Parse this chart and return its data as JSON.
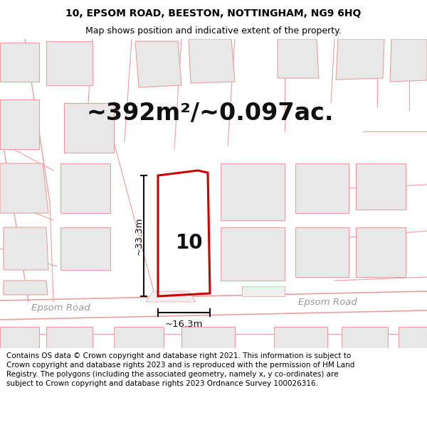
{
  "title_line1": "10, EPSOM ROAD, BEESTON, NOTTINGHAM, NG9 6HQ",
  "title_line2": "Map shows position and indicative extent of the property.",
  "area_text": "~392m²/~0.097ac.",
  "label_number": "10",
  "dim_width": "~16.3m",
  "dim_height": "~33.3m",
  "road_label_left": "Epsom Road",
  "road_label_right": "Epsom Road",
  "footer_text": "Contains OS data © Crown copyright and database right 2021. This information is subject to Crown copyright and database rights 2023 and is reproduced with the permission of HM Land Registry. The polygons (including the associated geometry, namely x, y co-ordinates) are subject to Crown copyright and database rights 2023 Ordnance Survey 100026316.",
  "bg_color": "#ffffff",
  "map_bg": "#ffffff",
  "building_fill": "#e8e8e8",
  "building_edge": "#e8a0a0",
  "road_line_color": "#e8a0a0",
  "highlight_color": "#cc0000",
  "measure_color": "#111111",
  "title_fontsize": 10,
  "subtitle_fontsize": 9,
  "area_fontsize": 24,
  "label_fontsize": 20,
  "footer_fontsize": 7.5,
  "road_fontsize": 9.5
}
